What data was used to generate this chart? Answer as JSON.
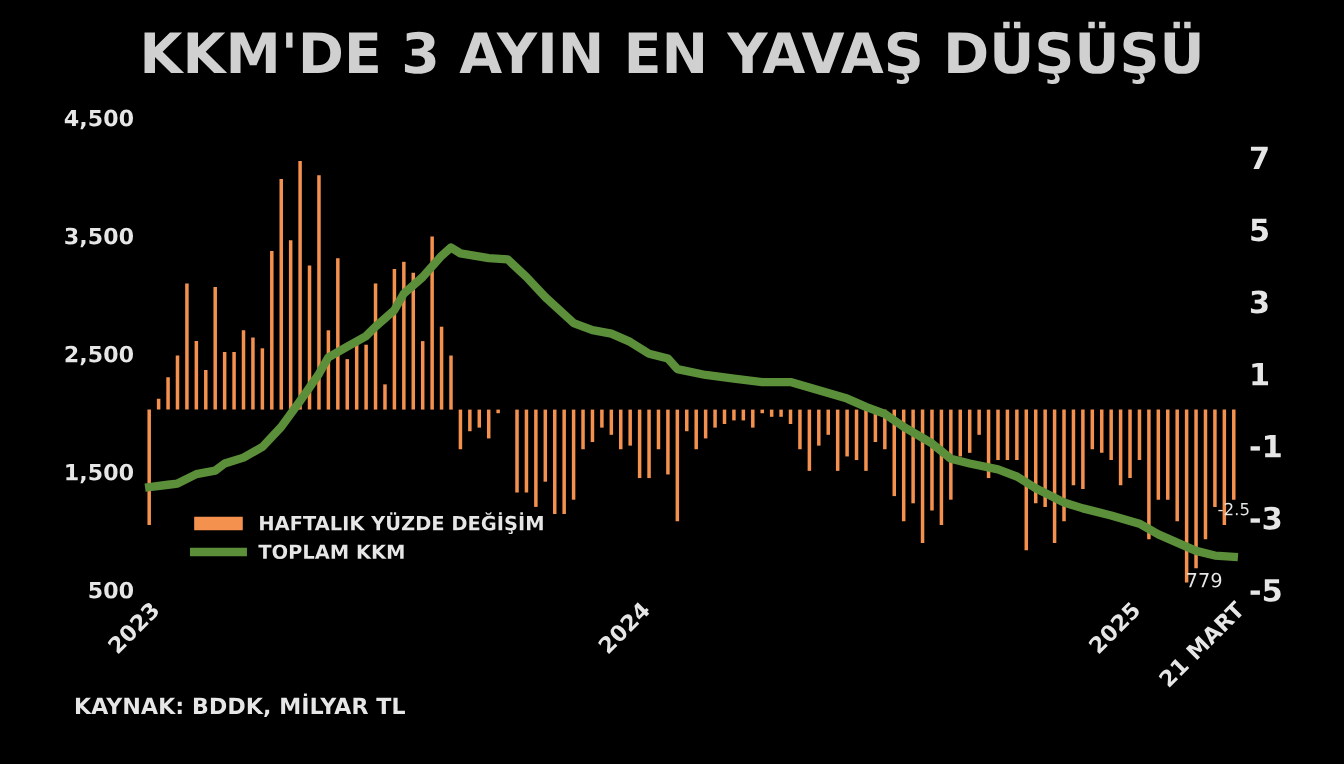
{
  "chart_data": {
    "type": "bar",
    "title": "KKM'DE 3 AYIN EN YAVAŞ DÜŞÜŞÜ",
    "annotations": [
      "KAYNAK: BDDK, MİLYAR TL"
    ],
    "x": [
      "2023-01-06",
      "2023-01-13",
      "2023-01-20",
      "2023-01-27",
      "2023-02-03",
      "2023-02-10",
      "2023-02-17",
      "2023-02-24",
      "2023-03-03",
      "2023-03-10",
      "2023-03-17",
      "2023-03-24",
      "2023-03-31",
      "2023-04-07",
      "2023-04-14",
      "2023-04-21",
      "2023-04-28",
      "2023-05-05",
      "2023-05-12",
      "2023-05-19",
      "2023-05-26",
      "2023-06-02",
      "2023-06-09",
      "2023-06-16",
      "2023-06-23",
      "2023-06-30",
      "2023-07-07",
      "2023-07-14",
      "2023-07-21",
      "2023-07-28",
      "2023-08-04",
      "2023-08-11",
      "2023-08-18",
      "2023-08-25",
      "2023-09-01",
      "2023-09-08",
      "2023-09-15",
      "2023-09-22",
      "2023-09-29",
      "2023-10-06",
      "2023-10-13",
      "2023-10-20",
      "2023-10-27",
      "2023-11-03",
      "2023-11-10",
      "2023-11-17",
      "2023-11-24",
      "2023-12-01",
      "2023-12-08",
      "2023-12-15",
      "2023-12-22",
      "2023-12-29",
      "2024-01-05",
      "2024-01-12",
      "2024-01-19",
      "2024-01-26",
      "2024-02-02",
      "2024-02-09",
      "2024-02-16",
      "2024-02-23",
      "2024-03-01",
      "2024-03-08",
      "2024-03-15",
      "2024-03-22",
      "2024-03-29",
      "2024-04-05",
      "2024-04-12",
      "2024-04-19",
      "2024-04-26",
      "2024-05-03",
      "2024-05-10",
      "2024-05-17",
      "2024-05-24",
      "2024-05-31",
      "2024-06-07",
      "2024-06-14",
      "2024-06-21",
      "2024-06-28",
      "2024-07-05",
      "2024-07-12",
      "2024-07-19",
      "2024-07-26",
      "2024-08-02",
      "2024-08-09",
      "2024-08-16",
      "2024-08-23",
      "2024-08-30",
      "2024-09-06",
      "2024-09-13",
      "2024-09-20",
      "2024-09-27",
      "2024-10-04",
      "2024-10-11",
      "2024-10-18",
      "2024-10-25",
      "2024-11-01",
      "2024-11-08",
      "2024-11-15",
      "2024-11-22",
      "2024-11-29",
      "2024-12-06",
      "2024-12-13",
      "2024-12-20",
      "2024-12-27",
      "2025-01-03",
      "2025-01-10",
      "2025-01-17",
      "2025-01-24",
      "2025-01-31",
      "2025-02-07",
      "2025-02-14",
      "2025-02-21",
      "2025-02-28",
      "2025-03-07",
      "2025-03-14",
      "2025-03-21"
    ],
    "series": [
      {
        "name": "HAFTALIK YÜZDE DEĞİŞİM",
        "axis": "y2",
        "color": "#f4914e",
        "values": [
          -3.2,
          0.3,
          0.9,
          1.5,
          3.5,
          1.9,
          1.1,
          3.4,
          1.6,
          1.6,
          2.2,
          2.0,
          1.7,
          4.4,
          6.4,
          4.7,
          6.9,
          4.0,
          6.5,
          2.2,
          4.2,
          1.4,
          1.8,
          1.8,
          3.5,
          0.7,
          3.9,
          4.1,
          3.8,
          1.9,
          4.8,
          2.3,
          1.5,
          -1.1,
          -0.6,
          -0.5,
          -0.8,
          -0.1,
          0,
          -2.3,
          -2.3,
          -2.7,
          -2.0,
          -2.9,
          -2.9,
          -2.5,
          -1.1,
          -0.9,
          -0.5,
          -0.7,
          -1.1,
          -1.0,
          -1.9,
          -1.9,
          -1.1,
          -1.8,
          -3.1,
          -0.6,
          -1.1,
          -0.8,
          -0.5,
          -0.4,
          -0.3,
          -0.3,
          -0.5,
          -0.1,
          -0.2,
          -0.2,
          -0.4,
          -1.1,
          -1.7,
          -1.0,
          -0.7,
          -1.7,
          -1.3,
          -1.4,
          -1.7,
          -0.9,
          -1.1,
          -2.4,
          -3.1,
          -2.6,
          -3.7,
          -2.8,
          -3.2,
          -2.5,
          -1.3,
          -1.2,
          -0.7,
          -1.9,
          -1.4,
          -1.4,
          -1.4,
          -3.9,
          -2.6,
          -2.7,
          -3.7,
          -3.1,
          -2.1,
          -2.2,
          -1.1,
          -1.2,
          -1.4,
          -2.1,
          -1.9,
          -1.4,
          -3.6,
          -2.5,
          -2.5,
          -3.1,
          -4.8,
          -4.4,
          -3.6,
          -2.7,
          -3.2,
          -2.5
        ],
        "value_labels": [
          null,
          null,
          null,
          null,
          null,
          null,
          null,
          null,
          null,
          null,
          null,
          null,
          null,
          null,
          null,
          null,
          null,
          null,
          null,
          null,
          null,
          null,
          null,
          null,
          null,
          null,
          null,
          null,
          null,
          null,
          null,
          null,
          null,
          null,
          null,
          null,
          null,
          null,
          null,
          null,
          null,
          null,
          null,
          null,
          null,
          null,
          null,
          null,
          null,
          null,
          null,
          null,
          null,
          null,
          null,
          null,
          null,
          null,
          null,
          null,
          null,
          null,
          null,
          null,
          null,
          null,
          null,
          null,
          null,
          null,
          null,
          null,
          null,
          null,
          null,
          null,
          null,
          null,
          null,
          null,
          null,
          null,
          null,
          null,
          null,
          null,
          null,
          null,
          null,
          null,
          null,
          null,
          null,
          null,
          null,
          null,
          null,
          null,
          null,
          null,
          null,
          null,
          null,
          null,
          null,
          null,
          null,
          null,
          null,
          null,
          null,
          null,
          null,
          null,
          null,
          "-2.5"
        ]
      },
      {
        "name": "TOPLAM KKM",
        "type": "line",
        "color": "#5b8f3a",
        "x": [
          "2023-01-06",
          "2023-01-20",
          "2023-01-27",
          "2023-02-10",
          "2023-02-24",
          "2023-03-03",
          "2023-03-17",
          "2023-03-31",
          "2023-04-14",
          "2023-04-28",
          "2023-05-12",
          "2023-05-19",
          "2023-06-02",
          "2023-06-16",
          "2023-06-23",
          "2023-07-07",
          "2023-07-14",
          "2023-07-28",
          "2023-08-11",
          "2023-08-18",
          "2023-08-25",
          "2023-09-15",
          "2023-09-29",
          "2023-10-13",
          "2023-10-27",
          "2023-11-17",
          "2023-12-01",
          "2023-12-15",
          "2023-12-29",
          "2024-01-12",
          "2024-01-26",
          "2024-02-02",
          "2024-02-23",
          "2024-03-15",
          "2024-04-05",
          "2024-04-26",
          "2024-05-17",
          "2024-06-07",
          "2024-06-21",
          "2024-07-05",
          "2024-07-19",
          "2024-08-09",
          "2024-08-23",
          "2024-09-06",
          "2024-09-27",
          "2024-10-11",
          "2024-10-25",
          "2024-11-15",
          "2024-11-29",
          "2024-12-20",
          "2025-01-10",
          "2025-01-24",
          "2025-02-07",
          "2025-02-21",
          "2025-03-07",
          "2025-03-21"
        ],
        "values": [
          1370,
          1390,
          1400,
          1480,
          1510,
          1570,
          1620,
          1710,
          1880,
          2100,
          2330,
          2470,
          2560,
          2650,
          2730,
          2870,
          3010,
          3150,
          3330,
          3400,
          3350,
          3310,
          3300,
          3150,
          2980,
          2760,
          2700,
          2670,
          2600,
          2500,
          2460,
          2370,
          2320,
          2290,
          2260,
          2260,
          2190,
          2120,
          2050,
          1990,
          1880,
          1740,
          1610,
          1570,
          1520,
          1460,
          1360,
          1240,
          1190,
          1130,
          1060,
          970,
          900,
          830,
          790,
          779
        ],
        "value_labels": [
          null,
          null,
          null,
          null,
          null,
          null,
          null,
          null,
          null,
          null,
          null,
          null,
          null,
          null,
          null,
          null,
          null,
          null,
          null,
          null,
          null,
          null,
          null,
          null,
          null,
          null,
          null,
          null,
          null,
          null,
          null,
          null,
          null,
          null,
          null,
          null,
          null,
          null,
          null,
          null,
          null,
          null,
          null,
          null,
          null,
          null,
          null,
          null,
          null,
          null,
          null,
          null,
          null,
          null,
          null,
          "779"
        ]
      }
    ],
    "xlim": [
      "2023-01-02",
      "2025-03-25"
    ],
    "xticks": [
      {
        "value": "2023-01-06",
        "label": "2023"
      },
      {
        "value": "2024-01-05",
        "label": "2024"
      },
      {
        "value": "2025-01-03",
        "label": "2025"
      },
      {
        "value": "2025-03-21",
        "label": "21 MART"
      }
    ],
    "ylim": [
      500,
      4500
    ],
    "yticks": [
      {
        "value": 500,
        "label": "500"
      },
      {
        "value": 1500,
        "label": "1,500"
      },
      {
        "value": 2500,
        "label": "2,500"
      },
      {
        "value": 3500,
        "label": "3,500"
      },
      {
        "value": 4500,
        "label": "4,500"
      }
    ],
    "y2lim": [
      -5,
      8.1
    ],
    "y2ticks": [
      -5,
      -3,
      -1,
      1,
      3,
      5,
      7
    ],
    "legend": "bottom left"
  }
}
